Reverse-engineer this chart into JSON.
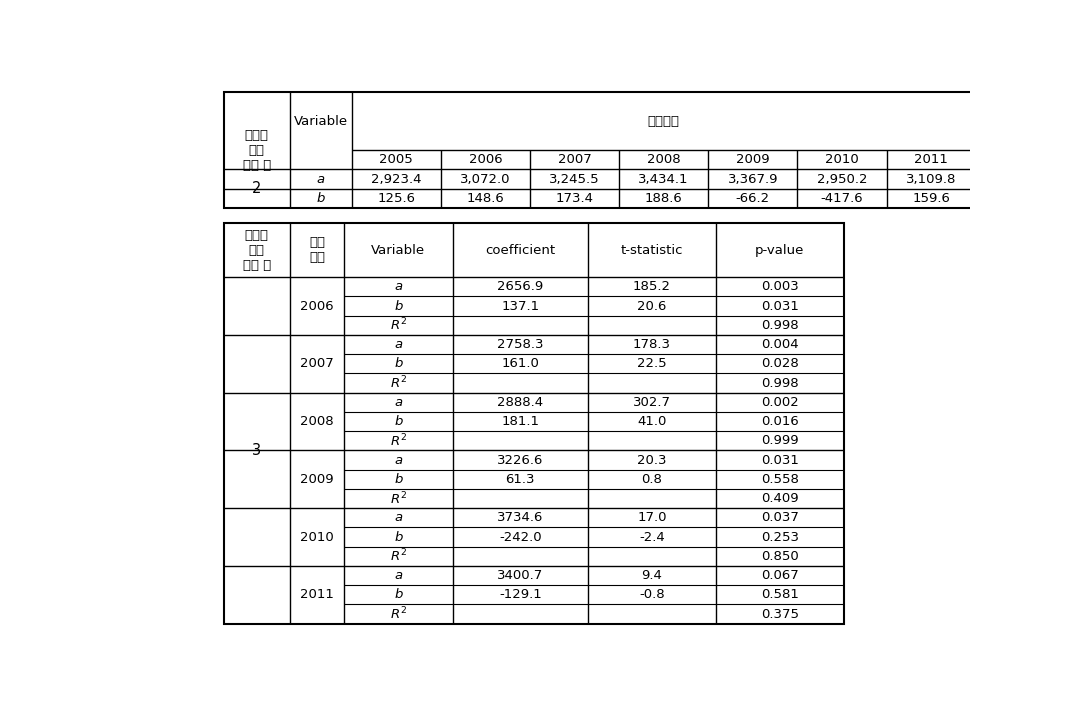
{
  "top_table": {
    "years": [
      "2005",
      "2006",
      "2007",
      "2008",
      "2009",
      "2010",
      "2011"
    ],
    "data": [
      {
        "var": "a",
        "values": [
          "2,923.4",
          "3,072.0",
          "3,245.5",
          "3,434.1",
          "3,367.9",
          "2,950.2",
          "3,109.8"
        ]
      },
      {
        "var": "b",
        "values": [
          "125.6",
          "148.6",
          "173.4",
          "188.6",
          "-66.2",
          "-417.6",
          "159.6"
        ]
      }
    ],
    "row_label": "2",
    "header_left1": "가정된\n가용\n자료 수",
    "header_left2": "Variable",
    "header_top": "기준년도"
  },
  "bottom_table": {
    "header_col0": "가정된\n가용\n자료 수",
    "header_col1": "기준\n년도",
    "header_col2": "Variable",
    "header_col3": "coefficient",
    "header_col4": "t-statistic",
    "header_col5": "p-value",
    "row_label": "3",
    "groups": [
      {
        "year": "2006",
        "rows": [
          {
            "var": "a",
            "coeff": "2656.9",
            "t_stat": "185.2",
            "p_val": "0.003"
          },
          {
            "var": "b",
            "coeff": "137.1",
            "t_stat": "20.6",
            "p_val": "0.031"
          },
          {
            "var": "R2",
            "coeff": "",
            "t_stat": "",
            "p_val": "0.998"
          }
        ]
      },
      {
        "year": "2007",
        "rows": [
          {
            "var": "a",
            "coeff": "2758.3",
            "t_stat": "178.3",
            "p_val": "0.004"
          },
          {
            "var": "b",
            "coeff": "161.0",
            "t_stat": "22.5",
            "p_val": "0.028"
          },
          {
            "var": "R2",
            "coeff": "",
            "t_stat": "",
            "p_val": "0.998"
          }
        ]
      },
      {
        "year": "2008",
        "rows": [
          {
            "var": "a",
            "coeff": "2888.4",
            "t_stat": "302.7",
            "p_val": "0.002"
          },
          {
            "var": "b",
            "coeff": "181.1",
            "t_stat": "41.0",
            "p_val": "0.016"
          },
          {
            "var": "R2",
            "coeff": "",
            "t_stat": "",
            "p_val": "0.999"
          }
        ]
      },
      {
        "year": "2009",
        "rows": [
          {
            "var": "a",
            "coeff": "3226.6",
            "t_stat": "20.3",
            "p_val": "0.031"
          },
          {
            "var": "b",
            "coeff": "61.3",
            "t_stat": "0.8",
            "p_val": "0.558"
          },
          {
            "var": "R2",
            "coeff": "",
            "t_stat": "",
            "p_val": "0.409"
          }
        ]
      },
      {
        "year": "2010",
        "rows": [
          {
            "var": "a",
            "coeff": "3734.6",
            "t_stat": "17.0",
            "p_val": "0.037"
          },
          {
            "var": "b",
            "coeff": "-242.0",
            "t_stat": "-2.4",
            "p_val": "0.253"
          },
          {
            "var": "R2",
            "coeff": "",
            "t_stat": "",
            "p_val": "0.850"
          }
        ]
      },
      {
        "year": "2011",
        "rows": [
          {
            "var": "a",
            "coeff": "3400.7",
            "t_stat": "9.4",
            "p_val": "0.067"
          },
          {
            "var": "b",
            "coeff": "-129.1",
            "t_stat": "-0.8",
            "p_val": "0.581"
          },
          {
            "var": "R2",
            "coeff": "",
            "t_stat": "",
            "p_val": "0.375"
          }
        ]
      }
    ]
  },
  "bg_color": "#ffffff",
  "border_color": "#000000",
  "font_size": 9.5,
  "font_size_small": 9.0
}
